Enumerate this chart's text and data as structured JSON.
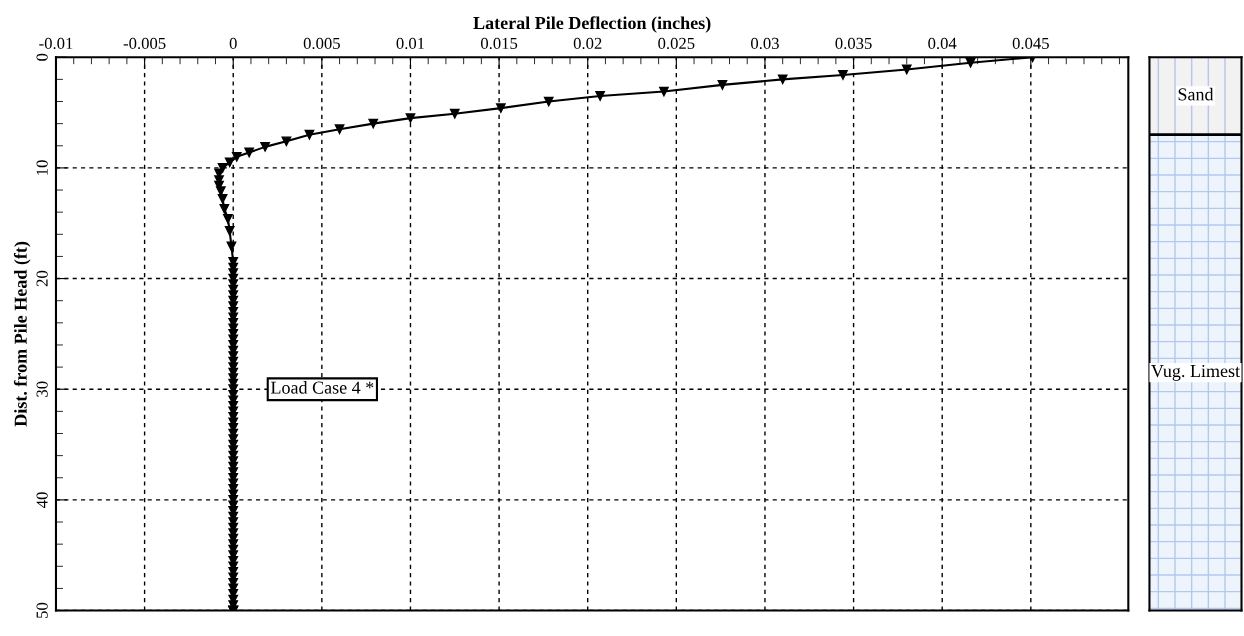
{
  "chart_data": [
    {
      "type": "line",
      "xlabel": "Lateral Pile Deflection (inches)",
      "ylabel": "Dist. from Pile Head (ft)",
      "series": [
        {
          "color": "#000000",
          "marker": "triangle",
          "x": [
            0.0451,
            0.0416,
            0.038,
            0.0344,
            0.031,
            0.0276,
            0.0243,
            0.0207,
            0.0178,
            0.0151,
            0.0125,
            0.01,
            0.0079,
            0.006,
            0.0043,
            0.003,
            0.0018,
            0.0009,
            0.0002,
            -0.0002,
            -0.0006,
            -0.0008,
            -0.0008,
            -0.0008,
            -0.0007,
            -0.0006,
            -0.0005,
            -0.0003,
            -0.0002,
            -0.0001,
            0,
            0,
            0,
            0,
            0,
            0,
            0,
            0,
            0,
            0,
            0,
            0,
            0,
            0,
            0,
            0,
            0,
            0,
            0,
            0,
            0,
            0,
            0,
            0,
            0,
            0,
            0,
            0,
            0,
            0,
            0,
            0,
            0,
            0,
            0,
            0,
            0,
            0,
            0,
            0,
            0,
            0,
            0,
            0,
            0,
            0,
            0,
            0,
            0,
            0,
            0,
            0,
            0,
            0,
            0,
            0,
            0,
            0,
            0,
            0,
            0,
            0,
            0,
            0,
            0,
            0,
            0
          ],
          "values": [
            0,
            0.5,
            1.1,
            1.6,
            2.0,
            2.5,
            3.1,
            3.5,
            4.0,
            4.6,
            5.1,
            5.5,
            6.0,
            6.5,
            7.0,
            7.6,
            8.1,
            8.6,
            9.0,
            9.5,
            10.0,
            10.5,
            11.1,
            11.6,
            12.1,
            12.8,
            13.7,
            14.6,
            15.7,
            17.1,
            18.5,
            19.0,
            19.5,
            20.0,
            20.5,
            21.0,
            21.5,
            22.0,
            22.5,
            23.0,
            23.5,
            24.0,
            24.5,
            25.0,
            25.5,
            26.0,
            26.5,
            27.0,
            27.5,
            28.0,
            28.5,
            29.0,
            29.5,
            30.0,
            30.5,
            31.0,
            31.5,
            32.0,
            32.5,
            33.0,
            33.5,
            34.0,
            34.5,
            35.0,
            35.5,
            36.0,
            36.5,
            37.0,
            37.5,
            38.0,
            38.5,
            39.0,
            39.5,
            40.0,
            40.5,
            41.0,
            41.5,
            42.0,
            42.5,
            43.0,
            43.5,
            44.0,
            44.5,
            45.0,
            45.5,
            46.0,
            46.5,
            47.0,
            47.5,
            48.0,
            48.5,
            49.0,
            49.5,
            50.0,
            50.0,
            50.0,
            50.0
          ]
        }
      ],
      "xlim": [
        -0.01,
        0.0505
      ],
      "xticks": [
        {
          "value": -0.01,
          "label": "-0.01"
        },
        {
          "value": -0.005,
          "label": "-0.005"
        },
        0,
        0.005,
        0.01,
        0.015,
        0.02,
        0.025,
        0.03,
        0.035,
        0.04,
        0.045
      ],
      "ylim": [
        50,
        0
      ],
      "yticks": [
        0,
        10,
        20,
        30,
        40,
        50
      ],
      "grid": true,
      "line_style": "solid",
      "annotations": [
        "Load Case 4 *"
      ]
    },
    {
      "type": "bar",
      "stacked": true,
      "categories": [
        null
      ],
      "ylim": [
        50,
        0
      ],
      "tick_labels": false,
      "series": [
        {
          "name": "Sand",
          "color": "#f2f2f2",
          "values": [
            7
          ]
        },
        {
          "name": "Vug. Limest",
          "color": "#eef4fc",
          "values": [
            43
          ]
        }
      ]
    }
  ]
}
